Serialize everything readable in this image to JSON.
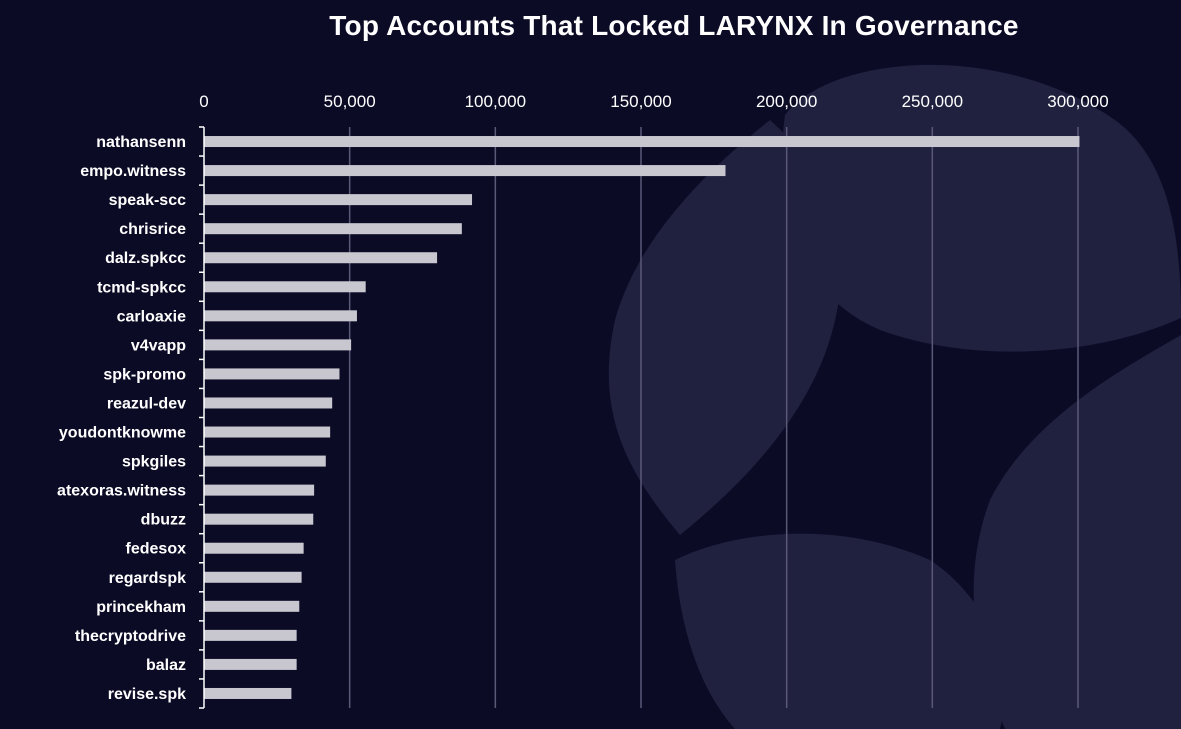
{
  "colors": {
    "background": "#0b0b26",
    "bar": "#c8c7d0",
    "gridline": "#5a5a78",
    "text": "#ffffff",
    "watermark": "#222242"
  },
  "chart_data": {
    "type": "bar",
    "orientation": "horizontal",
    "title": "Top Accounts That Locked LARYNX In Governance",
    "xlabel": "",
    "ylabel": "",
    "xlim": [
      0,
      300000
    ],
    "x_ticks": [
      0,
      50000,
      100000,
      150000,
      200000,
      250000,
      300000
    ],
    "x_tick_labels": [
      "0",
      "50,000",
      "100,000",
      "150,000",
      "200,000",
      "250,000",
      "300,000"
    ],
    "x_axis_position": "top",
    "grid": true,
    "legend": "none",
    "categories": [
      "nathansenn",
      "empo.witness",
      "speak-scc",
      "chrisrice",
      "dalz.spkcc",
      "tcmd-spkcc",
      "carloaxie",
      "v4vapp",
      "spk-promo",
      "reazul-dev",
      "youdontknowme",
      "spkgiles",
      "atexoras.witness",
      "dbuzz",
      "fedesox",
      "regardspk",
      "princekham",
      "thecryptodrive",
      "balaz",
      "revise.spk"
    ],
    "values": [
      300500,
      179000,
      92000,
      88500,
      80000,
      55500,
      52500,
      50500,
      46500,
      44000,
      43300,
      41800,
      37800,
      37500,
      34200,
      33500,
      32700,
      31800,
      31800,
      30000
    ]
  }
}
